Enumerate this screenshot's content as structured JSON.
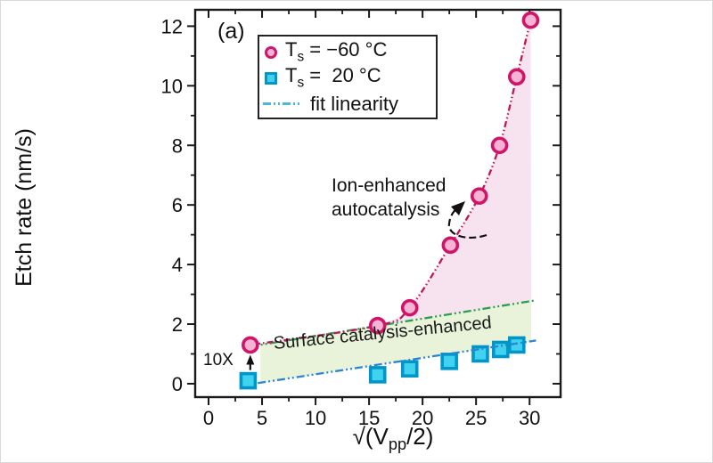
{
  "panel_label": "(a)",
  "axis": {
    "ylabel": "Etch rate (nm/s)",
    "xlabel_pre": "√(V",
    "xlabel_sub": "pp",
    "xlabel_post": "/2)",
    "x_major_ticks": [
      0,
      5,
      10,
      15,
      20,
      25,
      30
    ],
    "x_minor_ticks": [
      2.5,
      7.5,
      12.5,
      17.5,
      22.5,
      27.5
    ],
    "y_major_ticks": [
      0,
      2,
      4,
      6,
      8,
      10,
      12
    ],
    "y_minor_ticks": [
      1,
      3,
      5,
      7,
      9,
      11
    ],
    "xlim": [
      -1.25,
      32.9
    ],
    "ylim": [
      -0.45,
      12.55
    ]
  },
  "chart_data": {
    "type": "scatter",
    "title": "",
    "xlabel": "√(Vpp/2)",
    "ylabel": "Etch rate (nm/s)",
    "xlim": [
      -1.25,
      32.9
    ],
    "ylim": [
      -0.45,
      12.55
    ],
    "grid": false,
    "legend_position": "upper-left-inside",
    "series": [
      {
        "name": "Ts = −60 °C",
        "marker": "circle",
        "x": [
          3.9,
          15.8,
          18.8,
          22.6,
          25.3,
          27.2,
          28.8,
          30.1
        ],
        "y": [
          1.3,
          1.95,
          2.55,
          4.65,
          6.3,
          8.0,
          10.3,
          12.2
        ],
        "line_style": "dash-dot-dot",
        "line_color": "#c01455",
        "marker_stroke": "#d01468",
        "marker_fill": "#f6b3d4"
      },
      {
        "name": "Ts = 20 °C",
        "marker": "square",
        "x": [
          3.7,
          15.8,
          18.8,
          22.5,
          25.4,
          27.3,
          28.8
        ],
        "y": [
          0.1,
          0.3,
          0.5,
          0.75,
          1.0,
          1.15,
          1.3
        ],
        "line_style": "none",
        "line_color": "none",
        "marker_stroke": "#0096c8",
        "marker_fill": "#41d2ef"
      }
    ],
    "fit_lines": [
      {
        "name": "fit linearity (−60 °C linear extrapolation)",
        "x": [
          3.9,
          30.6
        ],
        "y": [
          1.25,
          2.8
        ],
        "color": "#28a04f",
        "style": "dash-dot-dot"
      },
      {
        "name": "fit linearity (20 °C)",
        "x": [
          4.6,
          30.6
        ],
        "y": [
          0.02,
          1.45
        ],
        "color": "#2b85cf",
        "style": "dash-dot-dot"
      }
    ],
    "shaded_regions": [
      {
        "name": "ion-enhanced autocatalysis region",
        "fill": "#f7e2ef",
        "x_range": [
          16.3,
          30.15
        ],
        "between": [
          "series 0 curve",
          "fit line 0"
        ]
      },
      {
        "name": "surface catalysis-enhanced region",
        "fill": "#e8f3da",
        "x_range": [
          4.85,
          30.15
        ],
        "between": [
          "fit line 0",
          "fit line 1"
        ]
      }
    ]
  },
  "legend": {
    "items": [
      {
        "marker": "circle",
        "label_base": "T",
        "label_sub": "s",
        "label_rest": " = −60 °C"
      },
      {
        "marker": "square",
        "label_base": "T",
        "label_sub": "s",
        "label_rest": " =  20 °C"
      },
      {
        "marker": "line",
        "label_base": "",
        "label_sub": "",
        "label_rest": "fit linearity"
      }
    ]
  },
  "annotations": {
    "ion_line1": "Ion-enhanced",
    "ion_line2": "autocatalysis",
    "surface": "Surface catalysis-enhanced",
    "ten_x": "10X"
  },
  "colors": {
    "axis": "#1a1a1a",
    "tick_label": "#111111",
    "legend_border": "#222222",
    "legend_line_swatch": "#49b8dc",
    "annotation_arrow": "#111111"
  }
}
